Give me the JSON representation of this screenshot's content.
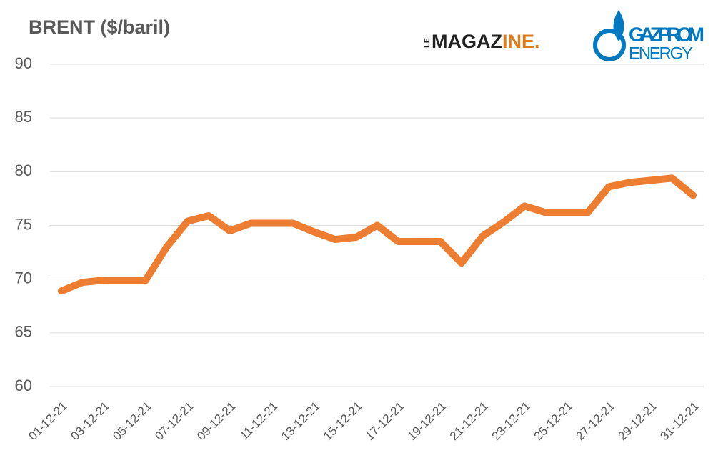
{
  "chart_data": {
    "type": "line",
    "title": "BRENT ($/baril)",
    "logos": {
      "magazine": {
        "prefix": "LE",
        "dark": "MAGAZ",
        "accent": "INE."
      },
      "gazprom": {
        "name": "GAZPROM",
        "sub": "ENERGY"
      }
    },
    "categories": [
      "01-12-21",
      null,
      "03-12-21",
      null,
      "05-12-21",
      null,
      "07-12-21",
      null,
      "09-12-21",
      null,
      "11-12-21",
      null,
      "13-12-21",
      null,
      "15-12-21",
      null,
      "17-12-21",
      null,
      "19-12-21",
      null,
      "21-12-21",
      null,
      "23-12-21",
      null,
      "25-12-21",
      null,
      "27-12-21",
      null,
      "29-12-21",
      null,
      "31-12-21"
    ],
    "series": [
      {
        "name": "Brent",
        "color": "#ed7d31",
        "values": [
          68.9,
          69.7,
          69.9,
          69.9,
          69.9,
          73.0,
          75.4,
          75.9,
          74.5,
          75.2,
          75.2,
          75.2,
          74.4,
          73.7,
          73.9,
          75.0,
          73.5,
          73.5,
          73.5,
          71.5,
          74.0,
          75.3,
          76.8,
          76.2,
          76.2,
          76.2,
          78.6,
          79.0,
          79.2,
          79.4,
          77.8
        ]
      }
    ],
    "ylim": [
      60,
      90
    ],
    "yticks": [
      60,
      65,
      70,
      75,
      80,
      85,
      90
    ],
    "grid": true
  }
}
